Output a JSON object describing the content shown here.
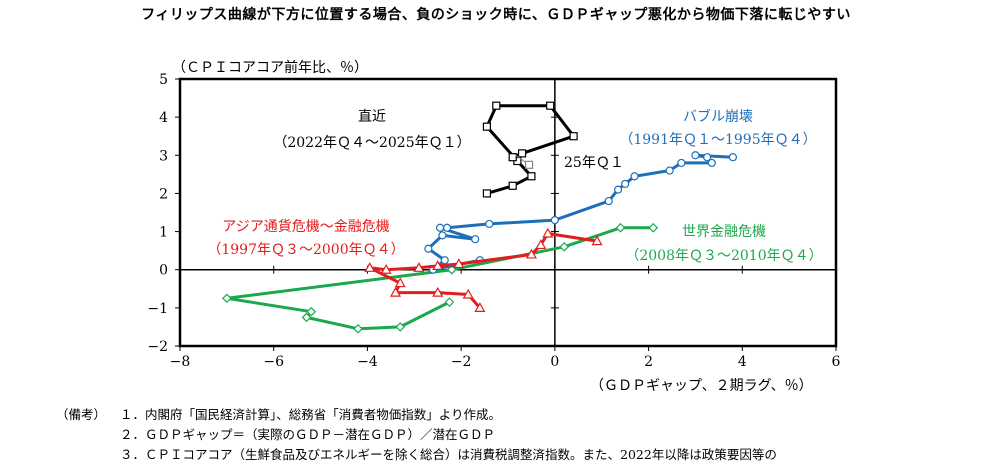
{
  "title": "フィリップス曲線が下方に位置する場合、負のショック時に、ＧＤＰギャップ悪化から物価下落に転じやすい",
  "chart_data": {
    "type": "scatter",
    "xlabel": "（ＧＤＰギャップ、２期ラグ、％）",
    "ylabel": "（ＣＰＩコアコア前年比、％）",
    "xlim": [
      -8,
      6
    ],
    "ylim": [
      -2,
      5
    ],
    "xticks": [
      -8,
      -6,
      -4,
      -2,
      0,
      2,
      4,
      6
    ],
    "yticks": [
      -2,
      -1,
      0,
      1,
      2,
      3,
      4,
      5
    ],
    "series": [
      {
        "name": "バブル崩壊",
        "period": "（1991年Ｑ１～1995年Ｑ４）",
        "color": "#1f6fb8",
        "marker": "circle",
        "points": [
          [
            3.8,
            2.95
          ],
          [
            3.0,
            3.0
          ],
          [
            3.25,
            2.95
          ],
          [
            3.35,
            2.8
          ],
          [
            2.7,
            2.8
          ],
          [
            2.45,
            2.6
          ],
          [
            1.7,
            2.45
          ],
          [
            1.5,
            2.25
          ],
          [
            1.35,
            2.1
          ],
          [
            1.15,
            1.8
          ],
          [
            0.0,
            1.3
          ],
          [
            -1.4,
            1.2
          ],
          [
            -2.3,
            1.1
          ],
          [
            -2.45,
            1.1
          ],
          [
            -1.7,
            0.8
          ],
          [
            -2.4,
            0.9
          ],
          [
            -2.7,
            0.55
          ],
          [
            -2.35,
            0.25
          ],
          [
            -2.6,
            0.0
          ],
          [
            -1.6,
            0.25
          ]
        ]
      },
      {
        "name": "アジア通貨危機～金融危機",
        "period": "（1997年Ｑ３～2000年Ｑ４）",
        "color": "#e41c1c",
        "marker": "triangle",
        "points": [
          [
            0.9,
            0.75
          ],
          [
            -0.15,
            0.95
          ],
          [
            -0.3,
            0.65
          ],
          [
            -0.5,
            0.4
          ],
          [
            -2.05,
            0.15
          ],
          [
            -2.5,
            0.1
          ],
          [
            -2.9,
            0.05
          ],
          [
            -3.6,
            0.0
          ],
          [
            -3.95,
            0.05
          ],
          [
            -3.3,
            -0.35
          ],
          [
            -3.4,
            -0.6
          ],
          [
            -2.5,
            -0.6
          ],
          [
            -1.85,
            -0.65
          ],
          [
            -1.6,
            -1.0
          ]
        ]
      },
      {
        "name": "世界金融危機",
        "period": "（2008年Ｑ３～2010年Ｑ４）",
        "color": "#1ca94c",
        "marker": "diamond",
        "points": [
          [
            2.1,
            1.1
          ],
          [
            1.4,
            1.1
          ],
          [
            0.2,
            0.6
          ],
          [
            -2.2,
            0.0
          ],
          [
            -7.0,
            -0.75
          ],
          [
            -5.2,
            -1.1
          ],
          [
            -5.3,
            -1.25
          ],
          [
            -4.2,
            -1.55
          ],
          [
            -3.3,
            -1.5
          ],
          [
            -2.25,
            -0.85
          ]
        ]
      },
      {
        "name": "直近",
        "period": "（2022年Ｑ４～2025年Ｑ１）",
        "color": "#000000",
        "marker": "square",
        "points": [
          [
            -1.45,
            2.0
          ],
          [
            -0.9,
            2.2
          ],
          [
            -0.5,
            2.45
          ],
          [
            -0.8,
            2.85
          ],
          [
            -1.45,
            3.75
          ],
          [
            -1.25,
            4.3
          ],
          [
            -0.1,
            4.3
          ],
          [
            0.4,
            3.5
          ],
          [
            -0.7,
            3.05
          ],
          [
            -0.9,
            2.95
          ]
        ]
      }
    ],
    "annotations": [
      {
        "text": "25年Ｑ１",
        "x": -0.4,
        "y": 2.75
      }
    ]
  },
  "notes": {
    "head": "（備考）",
    "lines": [
      "１．内閣府「国民経済計算」、総務省「消費者物価指数」より作成。",
      "２．ＧＤＰギャップ＝（実際のＧＤＰ－潜在ＧＤＰ）／潜在ＧＤＰ",
      "３．ＣＰＩコアコア（生鮮食品及びエネルギーを除く総合）は消費税調整済指数。また、2022年以降は政策要因等の"
    ]
  }
}
